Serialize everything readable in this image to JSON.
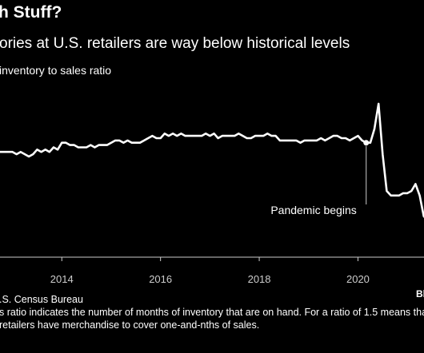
{
  "header": {
    "title": "h Stuff?",
    "subtitle": "ories at U.S. retailers are way below historical levels"
  },
  "chart_data": {
    "type": "line",
    "ylabel": "inventory to sales ratio",
    "x_ticks": [
      "2014",
      "2016",
      "2018",
      "2020"
    ],
    "xlim": [
      "2012-09",
      "2021-07"
    ],
    "ylim": [
      1.05,
      1.6
    ],
    "grid": false,
    "line_color": "#ffffff",
    "annotation": {
      "text": "Pandemic begins",
      "date": "2020-03"
    },
    "series": [
      {
        "x": [
          "2012-09",
          "2012-10",
          "2012-11",
          "2012-12",
          "2013-01",
          "2013-02",
          "2013-03",
          "2013-04",
          "2013-05",
          "2013-06",
          "2013-07",
          "2013-08",
          "2013-09",
          "2013-10",
          "2013-11",
          "2013-12",
          "2014-01",
          "2014-02",
          "2014-03",
          "2014-04",
          "2014-05",
          "2014-06",
          "2014-07",
          "2014-08",
          "2014-09",
          "2014-10",
          "2014-11",
          "2014-12",
          "2015-01",
          "2015-02",
          "2015-03",
          "2015-04",
          "2015-05",
          "2015-06",
          "2015-07",
          "2015-08",
          "2015-09",
          "2015-10",
          "2015-11",
          "2015-12",
          "2016-01",
          "2016-02",
          "2016-03",
          "2016-04",
          "2016-05",
          "2016-06",
          "2016-07",
          "2016-08",
          "2016-09",
          "2016-10",
          "2016-11",
          "2016-12",
          "2017-01",
          "2017-02",
          "2017-03",
          "2017-04",
          "2017-05",
          "2017-06",
          "2017-07",
          "2017-08",
          "2017-09",
          "2017-10",
          "2017-11",
          "2017-12",
          "2018-01",
          "2018-02",
          "2018-03",
          "2018-04",
          "2018-05",
          "2018-06",
          "2018-07",
          "2018-08",
          "2018-09",
          "2018-10",
          "2018-11",
          "2018-12",
          "2019-01",
          "2019-02",
          "2019-03",
          "2019-04",
          "2019-05",
          "2019-06",
          "2019-07",
          "2019-08",
          "2019-09",
          "2019-10",
          "2019-11",
          "2019-12",
          "2020-01",
          "2020-02",
          "2020-03",
          "2020-04",
          "2020-05",
          "2020-06",
          "2020-07",
          "2020-08",
          "2020-09",
          "2020-10",
          "2020-11",
          "2020-12",
          "2021-01",
          "2021-02",
          "2021-03",
          "2021-04",
          "2021-05",
          "2021-06"
        ],
        "y": [
          1.46,
          1.46,
          1.46,
          1.46,
          1.46,
          1.45,
          1.46,
          1.45,
          1.44,
          1.45,
          1.47,
          1.46,
          1.47,
          1.46,
          1.48,
          1.47,
          1.5,
          1.5,
          1.49,
          1.49,
          1.48,
          1.48,
          1.48,
          1.49,
          1.48,
          1.49,
          1.49,
          1.49,
          1.5,
          1.51,
          1.51,
          1.5,
          1.51,
          1.5,
          1.5,
          1.5,
          1.51,
          1.52,
          1.53,
          1.52,
          1.52,
          1.54,
          1.53,
          1.54,
          1.53,
          1.54,
          1.53,
          1.53,
          1.53,
          1.53,
          1.53,
          1.54,
          1.53,
          1.54,
          1.52,
          1.53,
          1.53,
          1.53,
          1.53,
          1.54,
          1.53,
          1.52,
          1.52,
          1.53,
          1.53,
          1.53,
          1.54,
          1.53,
          1.53,
          1.51,
          1.51,
          1.51,
          1.51,
          1.51,
          1.5,
          1.51,
          1.51,
          1.51,
          1.51,
          1.52,
          1.51,
          1.52,
          1.53,
          1.53,
          1.52,
          1.52,
          1.51,
          1.52,
          1.53,
          1.51,
          1.5,
          1.5,
          1.56,
          1.67,
          1.45,
          1.29,
          1.27,
          1.27,
          1.27,
          1.28,
          1.28,
          1.29,
          1.32,
          1.27,
          1.18,
          1.16
        ]
      }
    ]
  },
  "footer": {
    "source": ".S. Census Bureau",
    "note": "s ratio indicates the number of months of inventory that are on hand. For a ratio of 1.5 means that retailers have merchandise to cover one-and-nths of sales."
  },
  "brand": {
    "logo": "Bl"
  }
}
